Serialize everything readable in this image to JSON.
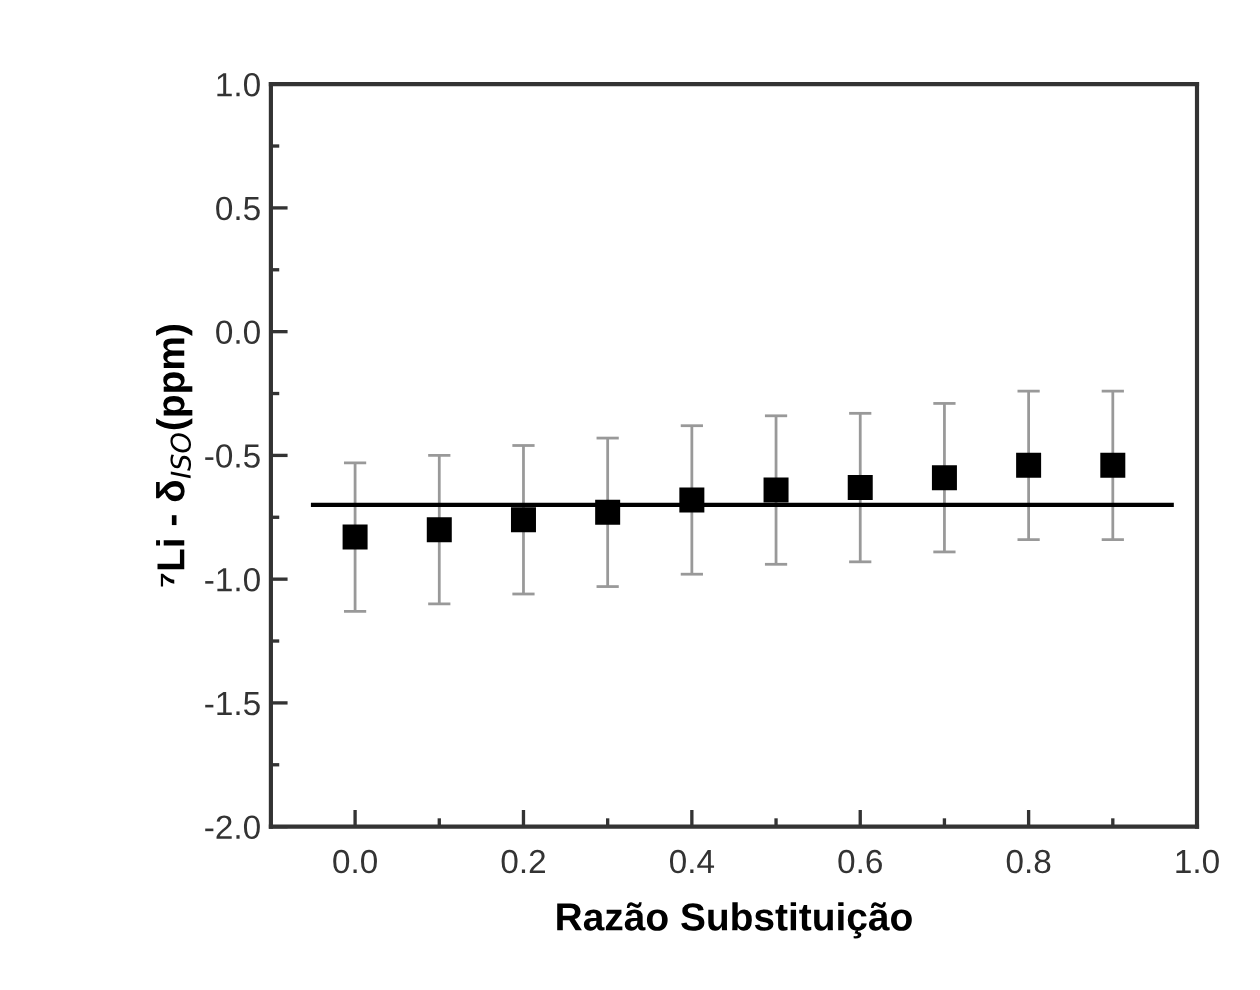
{
  "chart_data": {
    "type": "scatter",
    "xlabel": "Razão Substituição",
    "ylabel": "⁷Li - δ$_{ISO}$(ppm)",
    "x": [
      0.0,
      0.1,
      0.2,
      0.3,
      0.4,
      0.5,
      0.6,
      0.7,
      0.8,
      0.9
    ],
    "series": [
      {
        "color": "#000000",
        "marker": "square",
        "values": [
          -0.83,
          -0.8,
          -0.76,
          -0.73,
          -0.68,
          -0.64,
          -0.63,
          -0.59,
          -0.54,
          -0.54
        ],
        "errors": [
          0.3,
          0.3,
          0.3,
          0.3,
          0.3,
          0.3,
          0.3,
          0.3,
          0.3,
          0.3
        ]
      },
      {
        "type": "line",
        "color": "#000000",
        "marker": "none",
        "x": [
          -0.05,
          0.97
        ],
        "values": [
          -0.7,
          -0.7
        ]
      }
    ],
    "xlim": [
      -0.1,
      1.0
    ],
    "ylim": [
      -2.0,
      1.0
    ],
    "xticks": [
      {
        "value": 0.0,
        "label": "0.0"
      },
      {
        "value": 0.1,
        "label": null
      },
      {
        "value": 0.2,
        "label": "0.2"
      },
      {
        "value": 0.3,
        "label": null
      },
      {
        "value": 0.4,
        "label": "0.4"
      },
      {
        "value": 0.5,
        "label": null
      },
      {
        "value": 0.6,
        "label": "0.6"
      },
      {
        "value": 0.7,
        "label": null
      },
      {
        "value": 0.8,
        "label": "0.8"
      },
      {
        "value": 0.9,
        "label": null
      },
      {
        "value": 1.0,
        "label": "1.0"
      }
    ],
    "yticks": [
      {
        "value": -2.0,
        "label": "-2.0"
      },
      {
        "value": -1.75,
        "label": null
      },
      {
        "value": -1.5,
        "label": "-1.5"
      },
      {
        "value": -1.25,
        "label": null
      },
      {
        "value": -1.0,
        "label": "-1.0"
      },
      {
        "value": -0.75,
        "label": null
      },
      {
        "value": -0.5,
        "label": "-0.5"
      },
      {
        "value": -0.25,
        "label": null
      },
      {
        "value": 0.0,
        "label": "0.0"
      },
      {
        "value": 0.25,
        "label": null
      },
      {
        "value": 0.5,
        "label": "0.5"
      },
      {
        "value": 0.75,
        "label": null
      },
      {
        "value": 1.0,
        "label": "1.0"
      }
    ],
    "grid": false,
    "legend": false
  }
}
